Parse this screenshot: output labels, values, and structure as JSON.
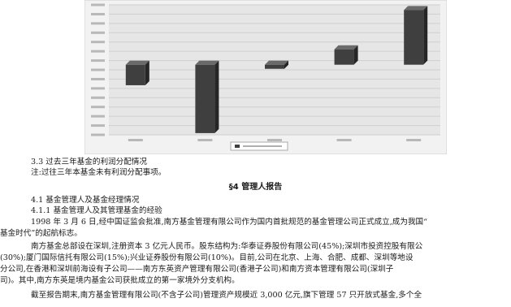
{
  "chart_data": {
    "type": "bar",
    "categories": [
      "2016",
      "2017",
      "2018",
      "2019",
      "2020"
    ],
    "series": [
      {
        "values": [
          -0.6,
          -2.0,
          -0.12,
          0.45,
          1.6
        ]
      }
    ],
    "ylim": [
      -2.05,
      1.75
    ],
    "grid": true,
    "legend": "bottom-center",
    "bar_color": "#3f3f3f",
    "plot_background": "#e6e6e6"
  },
  "sections": {
    "s33_title": "3.3 过去三年基金的利润分配情况",
    "s33_note": "注:过往三年本基金未有利润分配事项。",
    "s4_title": "§4 管理人报告",
    "s41_title": "4.1 基金管理人及基金经理情况",
    "s411_title": "4.1.1 基金管理人及其管理基金的经验",
    "p1_l1": "1998 年 3 月 6 日,经中国证监会批准,南方基金管理有限公司作为国内首批规范的基金管理公司正式成立,成为我国“",
    "p1_l2": "基金时代”的起航标志。",
    "p2_l1": "南方基金总部设在深圳,注册资本 3 亿元人民币。股东结构为:华泰证券股份有限公司(45%);深圳市投资控股有限公",
    "p2_l2": "(30%);厦门国际信托有限公司(15%);兴业证券股份有限公司(10%)。目前,公司在北京、上海、合肥、成都、深圳等地设",
    "p2_l3": "分公司,在香港和深圳前海设有子公司——南方东英资产管理有限公司(香港子公司)和南方资本管理有限公司(深圳子",
    "p2_l4": "司)。其中,南方东英是境内基金公司获批成立的第一家境外分支机构。",
    "p3_l1": "截至报告期末,南方基金管理有限公司(不含子公司)管理资产规模近 3,000 亿元,旗下管理 57 只开放式基金,多个全"
  }
}
